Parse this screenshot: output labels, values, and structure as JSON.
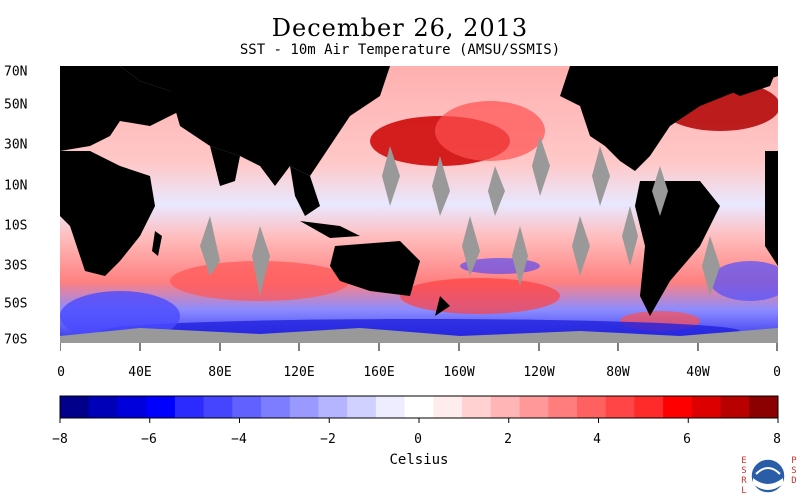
{
  "header": {
    "title": "December 26, 2013",
    "subtitle": "SST - 10m Air Temperature (AMSU/SSMIS)"
  },
  "map": {
    "projection": "equirectangular",
    "lat_range": [
      "70S",
      "70N"
    ],
    "lon_range": [
      "0",
      "0"
    ],
    "lat_labels": [
      "70N",
      "50N",
      "30N",
      "10N",
      "10S",
      "30S",
      "50S",
      "70S"
    ],
    "lon_labels": [
      "0",
      "40E",
      "80E",
      "120E",
      "160E",
      "160W",
      "120W",
      "80W",
      "40W",
      "0"
    ],
    "land_color": "#000000",
    "missing_color": "#999999"
  },
  "colorbar": {
    "unit": "Celsius",
    "tick_labels": [
      "−8",
      "−6",
      "−4",
      "−2",
      "0",
      "2",
      "4",
      "6",
      "8"
    ],
    "colors": [
      "#00008b",
      "#0000b8",
      "#0000dd",
      "#0000ff",
      "#2b2bff",
      "#4545ff",
      "#6161ff",
      "#7d7dff",
      "#9999ff",
      "#b5b5ff",
      "#d1d1ff",
      "#ededff",
      "#ffffff",
      "#ffeded",
      "#ffd1d1",
      "#ffb5b5",
      "#ff9999",
      "#ff7d7d",
      "#ff6161",
      "#ff4545",
      "#ff2b2b",
      "#ff0000",
      "#dd0000",
      "#b80000",
      "#8b0000"
    ]
  },
  "logo": {
    "left_text": "ESRL",
    "right_text": "PSD"
  }
}
